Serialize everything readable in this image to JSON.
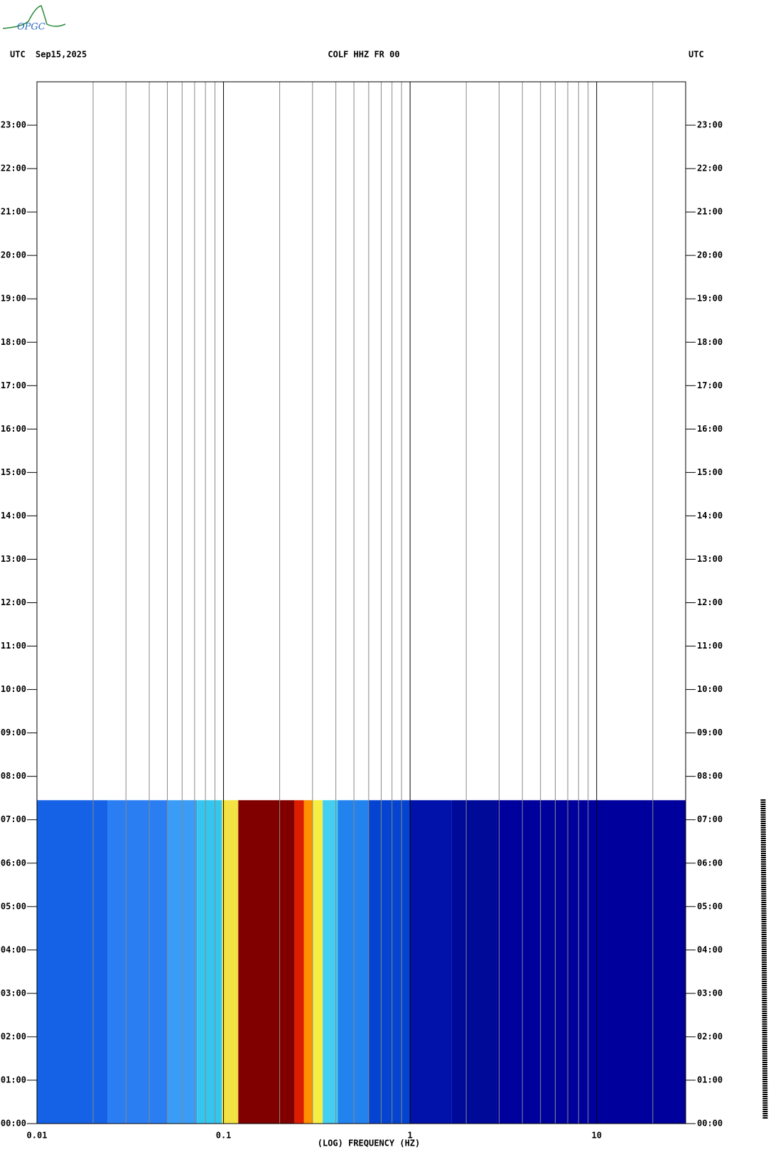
{
  "logo": "OPGC",
  "chart_data": {
    "type": "spectrogram",
    "left_label": "UTC",
    "date": "Sep15,2025",
    "title": "COLF HHZ FR 00",
    "right_label": "UTC",
    "x_label": "(LOG) FREQUENCY (HZ)",
    "x_log": true,
    "xlim": [
      0.01,
      30
    ],
    "xticks": [
      0.01,
      0.1,
      1,
      10
    ],
    "xminorticks": [
      0.02,
      0.03,
      0.04,
      0.05,
      0.06,
      0.07,
      0.08,
      0.09,
      0.2,
      0.3,
      0.4,
      0.5,
      0.6,
      0.7,
      0.8,
      0.9,
      2,
      3,
      4,
      5,
      6,
      7,
      8,
      9,
      20
    ],
    "ylim": [
      0,
      24
    ],
    "yticks": [
      {
        "value": 0,
        "label": "00:00"
      },
      {
        "value": 1,
        "label": "01:00"
      },
      {
        "value": 2,
        "label": "02:00"
      },
      {
        "value": 3,
        "label": "03:00"
      },
      {
        "value": 4,
        "label": "04:00"
      },
      {
        "value": 5,
        "label": "05:00"
      },
      {
        "value": 6,
        "label": "06:00"
      },
      {
        "value": 7,
        "label": "07:00"
      },
      {
        "value": 8,
        "label": "08:00"
      },
      {
        "value": 9,
        "label": "09:00"
      },
      {
        "value": 10,
        "label": "10:00"
      },
      {
        "value": 11,
        "label": "11:00"
      },
      {
        "value": 12,
        "label": "12:00"
      },
      {
        "value": 13,
        "label": "13:00"
      },
      {
        "value": 14,
        "label": "14:00"
      },
      {
        "value": 15,
        "label": "15:00"
      },
      {
        "value": 16,
        "label": "16:00"
      },
      {
        "value": 17,
        "label": "17:00"
      },
      {
        "value": 18,
        "label": "18:00"
      },
      {
        "value": 19,
        "label": "19:00"
      },
      {
        "value": 20,
        "label": "20:00"
      },
      {
        "value": 21,
        "label": "21:00"
      },
      {
        "value": 22,
        "label": "22:00"
      },
      {
        "value": 23,
        "label": "23:00"
      }
    ],
    "time_end": 7.45,
    "band_edges": [
      0.01,
      0.024,
      0.05,
      0.072,
      0.098,
      0.12,
      0.24,
      0.27,
      0.3,
      0.34,
      0.41,
      0.6,
      1.0,
      1.67,
      2.9,
      30
    ],
    "band_colors": [
      "#1662e6",
      "#2a7ef2",
      "#3a9cf6",
      "#34c6ee",
      "#f2e244",
      "#800000",
      "#dc1e00",
      "#ff9000",
      "#f6ee44",
      "#44cef0",
      "#2282ee",
      "#0444d0",
      "#0012aa",
      "#000a98",
      "#00009c"
    ]
  }
}
